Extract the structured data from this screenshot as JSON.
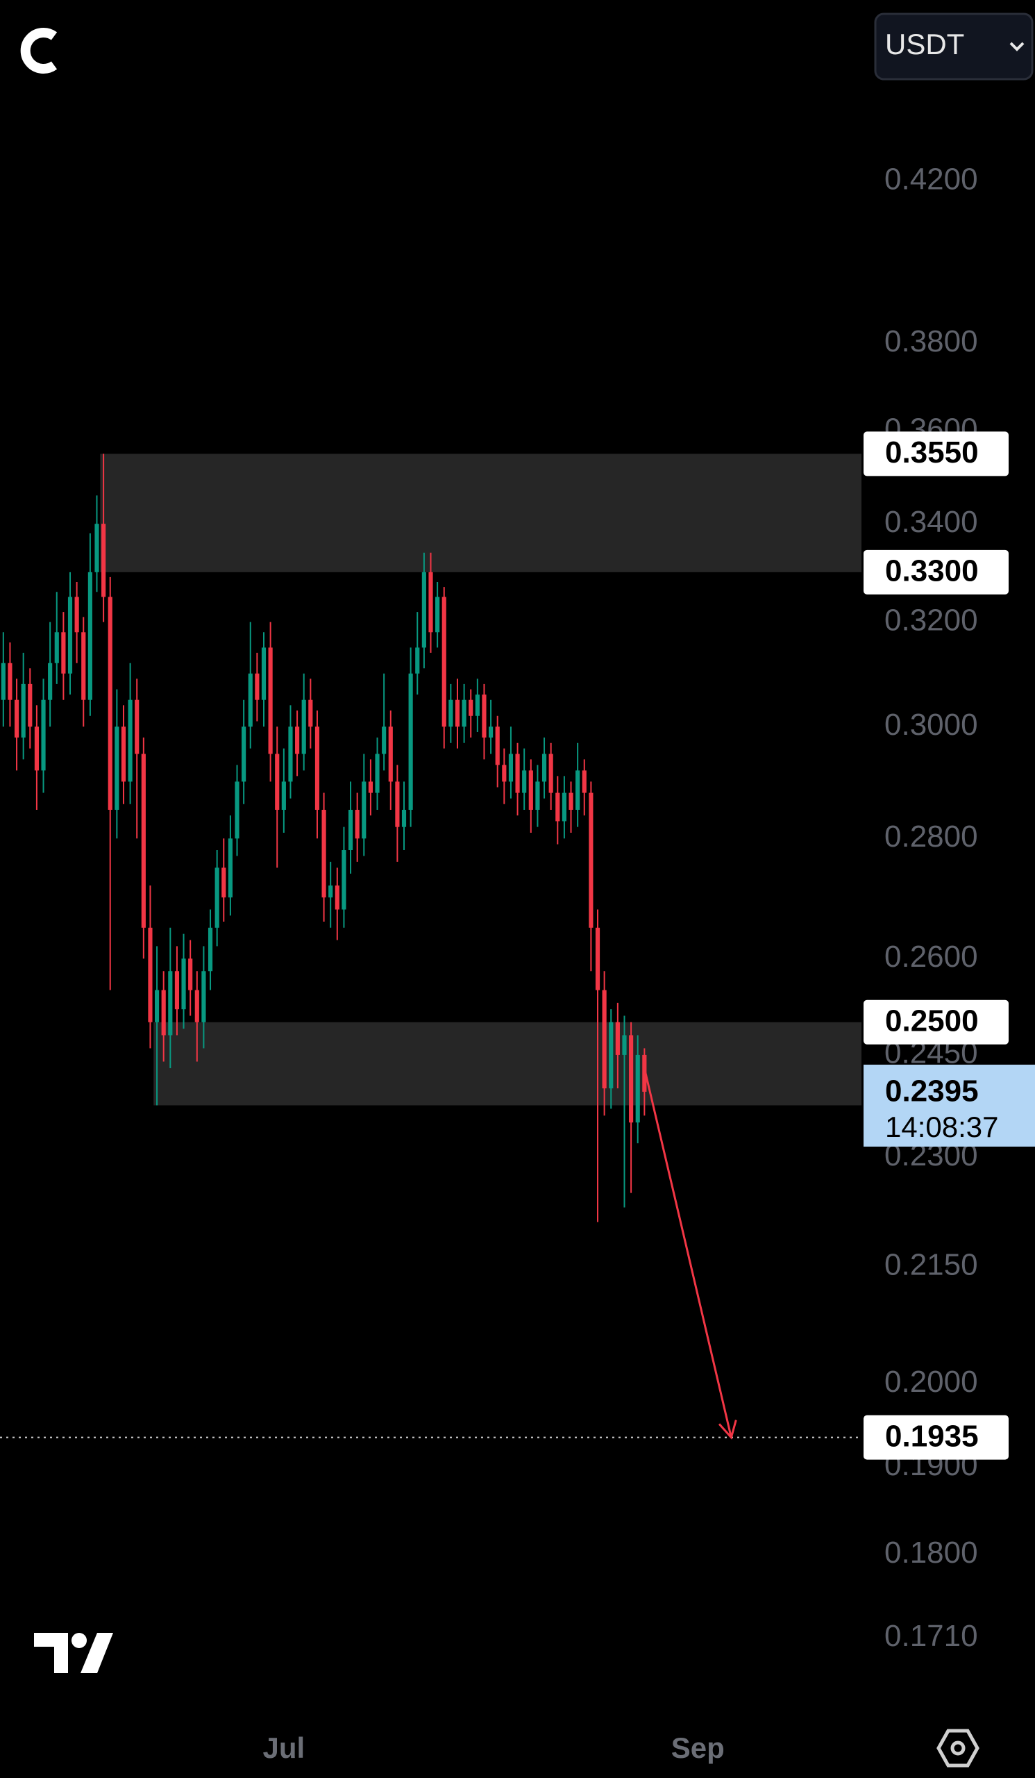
{
  "ui": {
    "currency": "USDT"
  },
  "chart_data": {
    "type": "candlestick",
    "up_color": "#089981",
    "down_color": "#f23645",
    "log_scale": true,
    "open": [
      0.305,
      0.312,
      0.305,
      0.298,
      0.308,
      0.3,
      0.292,
      0.305,
      0.312,
      0.318,
      0.31,
      0.325,
      0.318,
      0.305,
      0.33,
      0.34,
      0.325,
      0.285,
      0.3,
      0.29,
      0.305,
      0.295,
      0.265,
      0.25,
      0.255,
      0.248,
      0.258,
      0.252,
      0.26,
      0.255,
      0.25,
      0.258,
      0.265,
      0.275,
      0.27,
      0.28,
      0.29,
      0.3,
      0.31,
      0.305,
      0.315,
      0.295,
      0.285,
      0.29,
      0.3,
      0.295,
      0.305,
      0.3,
      0.285,
      0.27,
      0.272,
      0.268,
      0.278,
      0.285,
      0.28,
      0.29,
      0.288,
      0.295,
      0.3,
      0.29,
      0.282,
      0.285,
      0.31,
      0.315,
      0.33,
      0.318,
      0.325,
      0.3,
      0.305,
      0.3,
      0.305,
      0.302,
      0.306,
      0.298,
      0.3,
      0.293,
      0.29,
      0.295,
      0.288,
      0.292,
      0.285,
      0.29,
      0.295,
      0.288,
      0.283,
      0.288,
      0.285,
      0.292,
      0.288,
      0.265,
      0.255,
      0.24,
      0.25,
      0.245,
      0.248,
      0.235,
      0.245
    ],
    "high": [
      0.318,
      0.316,
      0.309,
      0.314,
      0.311,
      0.304,
      0.309,
      0.32,
      0.326,
      0.322,
      0.33,
      0.328,
      0.321,
      0.338,
      0.346,
      0.355,
      0.329,
      0.307,
      0.304,
      0.312,
      0.309,
      0.298,
      0.272,
      0.262,
      0.258,
      0.265,
      0.262,
      0.264,
      0.263,
      0.258,
      0.262,
      0.268,
      0.278,
      0.28,
      0.284,
      0.293,
      0.305,
      0.32,
      0.314,
      0.318,
      0.32,
      0.3,
      0.296,
      0.304,
      0.303,
      0.31,
      0.309,
      0.303,
      0.288,
      0.276,
      0.275,
      0.282,
      0.29,
      0.288,
      0.295,
      0.294,
      0.298,
      0.31,
      0.303,
      0.293,
      0.29,
      0.315,
      0.322,
      0.334,
      0.334,
      0.328,
      0.327,
      0.308,
      0.309,
      0.308,
      0.307,
      0.309,
      0.308,
      0.305,
      0.302,
      0.296,
      0.3,
      0.297,
      0.296,
      0.294,
      0.293,
      0.298,
      0.297,
      0.291,
      0.291,
      0.29,
      0.297,
      0.294,
      0.29,
      0.268,
      0.258,
      0.252,
      0.253,
      0.251,
      0.25,
      0.248,
      0.246
    ],
    "low": [
      0.3,
      0.3,
      0.292,
      0.294,
      0.296,
      0.285,
      0.288,
      0.3,
      0.308,
      0.305,
      0.306,
      0.312,
      0.3,
      0.302,
      0.326,
      0.32,
      0.255,
      0.28,
      0.286,
      0.286,
      0.28,
      0.26,
      0.246,
      0.2375,
      0.244,
      0.243,
      0.248,
      0.249,
      0.251,
      0.244,
      0.246,
      0.255,
      0.262,
      0.266,
      0.267,
      0.277,
      0.286,
      0.296,
      0.301,
      0.3,
      0.29,
      0.275,
      0.281,
      0.287,
      0.291,
      0.292,
      0.296,
      0.28,
      0.266,
      0.265,
      0.263,
      0.265,
      0.274,
      0.276,
      0.277,
      0.284,
      0.285,
      0.292,
      0.285,
      0.276,
      0.278,
      0.282,
      0.306,
      0.311,
      0.314,
      0.315,
      0.296,
      0.297,
      0.296,
      0.297,
      0.298,
      0.299,
      0.294,
      0.295,
      0.289,
      0.286,
      0.287,
      0.284,
      0.285,
      0.281,
      0.282,
      0.287,
      0.285,
      0.279,
      0.28,
      0.281,
      0.282,
      0.284,
      0.258,
      0.221,
      0.236,
      0.237,
      0.24,
      0.223,
      0.225,
      0.232,
      0.236
    ],
    "close": [
      0.312,
      0.305,
      0.298,
      0.308,
      0.3,
      0.292,
      0.305,
      0.312,
      0.318,
      0.31,
      0.325,
      0.318,
      0.305,
      0.33,
      0.34,
      0.325,
      0.285,
      0.3,
      0.29,
      0.305,
      0.295,
      0.265,
      0.25,
      0.255,
      0.248,
      0.258,
      0.252,
      0.26,
      0.255,
      0.25,
      0.258,
      0.265,
      0.275,
      0.27,
      0.28,
      0.29,
      0.3,
      0.31,
      0.305,
      0.315,
      0.295,
      0.285,
      0.29,
      0.3,
      0.295,
      0.305,
      0.3,
      0.285,
      0.27,
      0.272,
      0.268,
      0.278,
      0.285,
      0.28,
      0.29,
      0.288,
      0.295,
      0.3,
      0.29,
      0.282,
      0.285,
      0.31,
      0.315,
      0.33,
      0.318,
      0.325,
      0.3,
      0.305,
      0.3,
      0.305,
      0.302,
      0.306,
      0.298,
      0.3,
      0.293,
      0.29,
      0.295,
      0.288,
      0.292,
      0.285,
      0.29,
      0.295,
      0.288,
      0.283,
      0.288,
      0.285,
      0.292,
      0.288,
      0.265,
      0.255,
      0.24,
      0.25,
      0.245,
      0.248,
      0.235,
      0.245,
      0.2395
    ],
    "xlim": [
      -0.5,
      128.5
    ],
    "xticks": [
      {
        "value": 42,
        "label": "Jul"
      },
      {
        "value": 104,
        "label": "Sep"
      }
    ],
    "ylim": [
      0.1644,
      0.4697
    ],
    "yticks": [
      {
        "value": 0.42,
        "label": "0.4200"
      },
      {
        "value": 0.38,
        "label": "0.3800"
      },
      {
        "value": 0.36,
        "label": "0.3600"
      },
      {
        "value": 0.34,
        "label": "0.3400"
      },
      {
        "value": 0.32,
        "label": "0.3200"
      },
      {
        "value": 0.3,
        "label": "0.3000"
      },
      {
        "value": 0.28,
        "label": "0.2800"
      },
      {
        "value": 0.26,
        "label": "0.2600"
      },
      {
        "value": 0.245,
        "label": "0.2450"
      },
      {
        "value": 0.23,
        "label": "0.2300"
      },
      {
        "value": 0.215,
        "label": "0.2150"
      },
      {
        "value": 0.2,
        "label": "0.2000"
      },
      {
        "value": 0.19,
        "label": "0.1900"
      },
      {
        "value": 0.18,
        "label": "0.1800"
      },
      {
        "value": 0.171,
        "label": "0.1710"
      }
    ],
    "zones": [
      {
        "start": 15,
        "high": 0.355,
        "low": 0.33,
        "color": "#262626"
      },
      {
        "start": 23,
        "high": 0.25,
        "low": 0.2375,
        "color": "#262626"
      }
    ],
    "price_labels": [
      {
        "value": 0.355,
        "label": "0.3550"
      },
      {
        "value": 0.33,
        "label": "0.3300"
      },
      {
        "value": 0.25,
        "label": "0.2500"
      }
    ],
    "current_price": {
      "value": 0.2395,
      "label": "0.2395",
      "countdown": "14:08:37",
      "color": "#b3d6f5"
    },
    "target": {
      "value": 0.1935,
      "label": "0.1935"
    },
    "arrow": {
      "from": [
        96,
        0.243
      ],
      "to": [
        109,
        0.1935
      ],
      "color": "#f23645"
    }
  }
}
